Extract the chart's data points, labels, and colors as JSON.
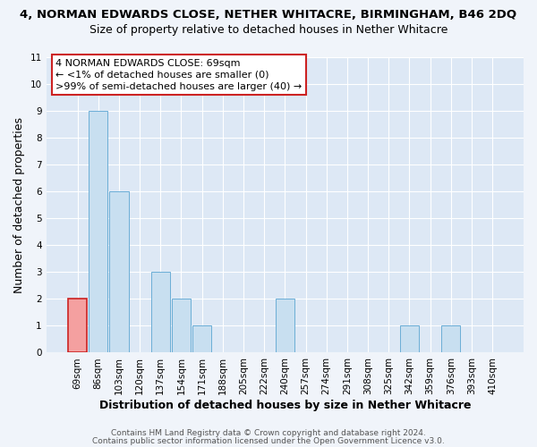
{
  "title_line1": "4, NORMAN EDWARDS CLOSE, NETHER WHITACRE, BIRMINGHAM, B46 2DQ",
  "title_line2": "Size of property relative to detached houses in Nether Whitacre",
  "xlabel": "Distribution of detached houses by size in Nether Whitacre",
  "ylabel": "Number of detached properties",
  "categories": [
    "69sqm",
    "86sqm",
    "103sqm",
    "120sqm",
    "137sqm",
    "154sqm",
    "171sqm",
    "188sqm",
    "205sqm",
    "222sqm",
    "240sqm",
    "257sqm",
    "274sqm",
    "291sqm",
    "308sqm",
    "325sqm",
    "342sqm",
    "359sqm",
    "376sqm",
    "393sqm",
    "410sqm"
  ],
  "values": [
    2,
    9,
    6,
    0,
    3,
    2,
    1,
    0,
    0,
    0,
    2,
    0,
    0,
    0,
    0,
    0,
    1,
    0,
    1,
    0,
    0
  ],
  "highlight_index": 0,
  "bar_color_normal": "#c8dff0",
  "bar_color_highlight": "#f4a0a0",
  "bar_edge_color_normal": "#6baed6",
  "bar_edge_color_highlight": "#cc2222",
  "ylim": [
    0,
    11
  ],
  "yticks": [
    0,
    1,
    2,
    3,
    4,
    5,
    6,
    7,
    8,
    9,
    10,
    11
  ],
  "annotation_box_text_line1": "4 NORMAN EDWARDS CLOSE: 69sqm",
  "annotation_box_text_line2": "← <1% of detached houses are smaller (0)",
  "annotation_box_text_line3": ">99% of semi-detached houses are larger (40) →",
  "annotation_box_facecolor": "#ffffff",
  "annotation_box_edgecolor": "#cc2222",
  "footer_line1": "Contains HM Land Registry data © Crown copyright and database right 2024.",
  "footer_line2": "Contains public sector information licensed under the Open Government Licence v3.0.",
  "fig_facecolor": "#f0f4fa",
  "plot_facecolor": "#dde8f5",
  "grid_color": "#ffffff",
  "title_fontsize": 9.5,
  "subtitle_fontsize": 9,
  "axis_label_fontsize": 9,
  "tick_fontsize": 7.5,
  "footer_fontsize": 6.5,
  "annotation_fontsize": 8
}
